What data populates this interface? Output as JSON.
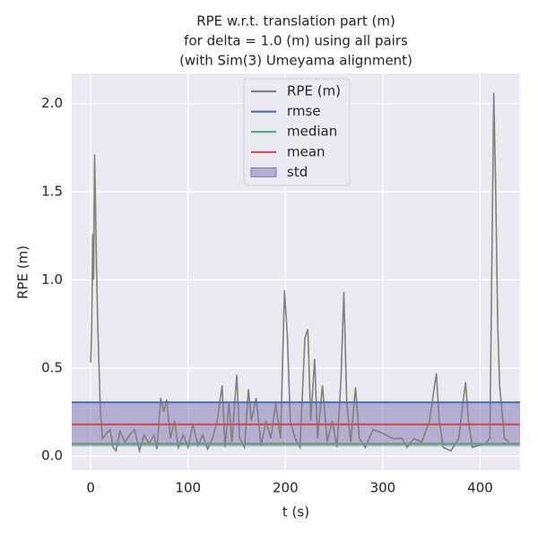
{
  "chart_data": {
    "type": "line",
    "title": [
      "RPE w.r.t. translation part (m)",
      "for delta = 1.0 (m) using all pairs",
      "(with Sim(3) Umeyama alignment)"
    ],
    "x_label": "t (s)",
    "y_label": "RPE (m)",
    "xlim": [
      -19.5,
      441
    ],
    "ylim": [
      -0.08,
      2.17
    ],
    "xticks": [
      0,
      100,
      200,
      300,
      400
    ],
    "yticks": [
      {
        "value": 0,
        "label": "0.0"
      },
      0.5,
      {
        "value": 1,
        "label": "1.0"
      },
      1.5,
      {
        "value": 2,
        "label": "2.0"
      }
    ],
    "grid": true,
    "legend": "upper center",
    "series": [
      {
        "name": "RPE (m)",
        "color": "#808080",
        "x": [
          0,
          1,
          2,
          3,
          4,
          5,
          6,
          7,
          8,
          10,
          12,
          15,
          20,
          23,
          26,
          30,
          35,
          40,
          45,
          50,
          55,
          60,
          65,
          68,
          72,
          75,
          78,
          82,
          86,
          90,
          95,
          100,
          105,
          110,
          115,
          120,
          125,
          130,
          135,
          138,
          142,
          145,
          150,
          153,
          158,
          162,
          165,
          170,
          175,
          180,
          185,
          190,
          195,
          199,
          202,
          205,
          210,
          215,
          220,
          223,
          226,
          230,
          233,
          238,
          243,
          248,
          253,
          257,
          260,
          263,
          267,
          272,
          276,
          282,
          290,
          300,
          310,
          320,
          325,
          332,
          340,
          348,
          355,
          358,
          362,
          370,
          378,
          385,
          388,
          392,
          398,
          405,
          410,
          414,
          416,
          418,
          420,
          425,
          430
        ],
        "values": [
          0.53,
          0.72,
          1.26,
          1.0,
          1.71,
          1.4,
          1.06,
          0.8,
          0.6,
          0.25,
          0.1,
          0.12,
          0.15,
          0.05,
          0.03,
          0.14,
          0.08,
          0.12,
          0.15,
          0.03,
          0.12,
          0.07,
          0.12,
          0.04,
          0.33,
          0.25,
          0.32,
          0.1,
          0.2,
          0.05,
          0.12,
          0.05,
          0.18,
          0.06,
          0.12,
          0.04,
          0.1,
          0.2,
          0.4,
          0.05,
          0.3,
          0.08,
          0.46,
          0.1,
          0.05,
          0.38,
          0.2,
          0.33,
          0.06,
          0.2,
          0.1,
          0.3,
          0.1,
          0.94,
          0.68,
          0.2,
          0.1,
          0.05,
          0.67,
          0.72,
          0.2,
          0.55,
          0.1,
          0.4,
          0.08,
          0.2,
          0.05,
          0.43,
          0.93,
          0.3,
          0.08,
          0.39,
          0.1,
          0.05,
          0.15,
          0.13,
          0.1,
          0.1,
          0.05,
          0.1,
          0.08,
          0.2,
          0.47,
          0.2,
          0.05,
          0.03,
          0.1,
          0.42,
          0.2,
          0.05,
          0.06,
          0.07,
          0.1,
          2.06,
          1.5,
          0.76,
          0.4,
          0.1,
          0.08
        ]
      }
    ],
    "stats": [
      {
        "name": "rmse",
        "color": "#4c72b0",
        "value": 0.305
      },
      {
        "name": "median",
        "color": "#55a868",
        "value": 0.07
      },
      {
        "name": "mean",
        "color": "#c44e52",
        "value": 0.18
      }
    ],
    "std": {
      "name": "std",
      "color": "#8172b2",
      "value": 0.125
    }
  }
}
